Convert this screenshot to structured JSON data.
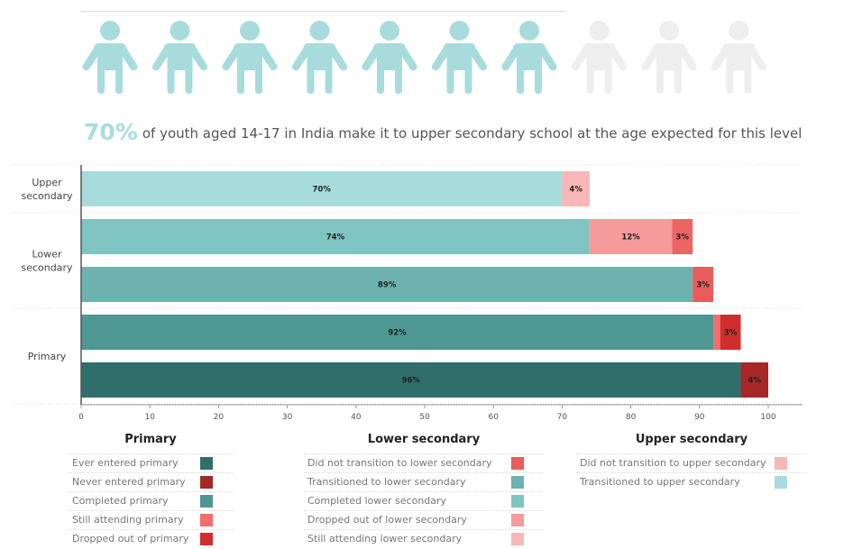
{
  "icons": {
    "name": "person-icon",
    "total": 10,
    "filled": 7,
    "filled_color": "#a8dcdc",
    "empty_color": "#eeeeee"
  },
  "headline": {
    "percent": "70%",
    "text": "of youth aged 14-17 in India make it to upper secondary school at the age expected for this level"
  },
  "chart_data": {
    "type": "bar",
    "orientation": "horizontal",
    "stacked": true,
    "groups": [
      {
        "label": "Upper\nsecondary",
        "bars": [
          {
            "segments": [
              {
                "value": 70,
                "label": "70%",
                "color": "#a8dcdc"
              },
              {
                "value": 4,
                "label": "4%",
                "color": "#f9b6b6"
              }
            ]
          }
        ]
      },
      {
        "label": "Lower\nsecondary",
        "bars": [
          {
            "segments": [
              {
                "value": 74,
                "label": "74%",
                "color": "#7fc4c0"
              },
              {
                "value": 12,
                "label": "12%",
                "color": "#f59b9b"
              },
              {
                "value": 3,
                "label": "3%",
                "color": "#ec6464"
              }
            ]
          },
          {
            "segments": [
              {
                "value": 89,
                "label": "89%",
                "color": "#6db2ae"
              },
              {
                "value": 3,
                "label": "3%",
                "color": "#e95c5c"
              }
            ]
          }
        ]
      },
      {
        "label": "Primary",
        "bars": [
          {
            "segments": [
              {
                "value": 92,
                "label": "92%",
                "color": "#4e9792"
              },
              {
                "value": 1,
                "label": "",
                "color": "#f16e6e"
              },
              {
                "value": 3,
                "label": "3%",
                "color": "#cf2e2e"
              }
            ]
          },
          {
            "segments": [
              {
                "value": 96,
                "label": "96%",
                "color": "#2f6e6b"
              },
              {
                "value": 4,
                "label": "4%",
                "color": "#a72727"
              }
            ]
          }
        ]
      }
    ],
    "x_ticks": [
      0,
      10,
      20,
      30,
      40,
      50,
      60,
      70,
      80,
      90,
      100
    ],
    "xlim": [
      0,
      100
    ],
    "xlabel": "",
    "ylabel": ""
  },
  "legend": [
    {
      "title": "Primary",
      "items": [
        {
          "label": "Ever entered primary",
          "color": "#2f6e6b"
        },
        {
          "label": "Never entered primary",
          "color": "#a72727"
        },
        {
          "label": "Completed primary",
          "color": "#4e9792"
        },
        {
          "label": "Still attending primary",
          "color": "#f16e6e"
        },
        {
          "label": "Dropped out of primary",
          "color": "#cf2e2e"
        }
      ]
    },
    {
      "title": "Lower secondary",
      "items": [
        {
          "label": "Did not transition to lower secondary",
          "color": "#e95c5c"
        },
        {
          "label": "Transitioned to lower secondary",
          "color": "#6db2ae"
        },
        {
          "label": "Completed lower secondary",
          "color": "#7fc4c0"
        },
        {
          "label": "Dropped out of lower secondary",
          "color": "#f59b9b"
        },
        {
          "label": "Still attending lower secondary",
          "color": "#f9b6b6"
        }
      ]
    },
    {
      "title": "Upper secondary",
      "items": [
        {
          "label": "Did not transition to upper secondary",
          "color": "#f9b6b6"
        },
        {
          "label": "Transitioned to upper secondary",
          "color": "#a8dcdc"
        }
      ]
    }
  ]
}
